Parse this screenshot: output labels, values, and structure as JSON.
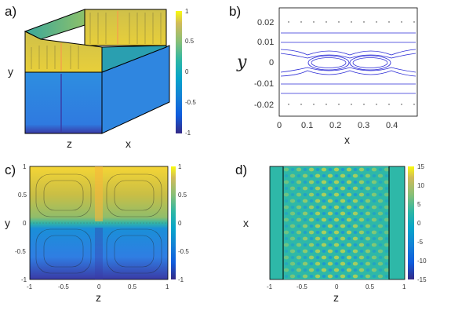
{
  "panels": {
    "a": {
      "label": "a)",
      "axis_labels": [
        "y",
        "z",
        "x"
      ],
      "colorbar_ticks": [
        "1",
        "0.5",
        "0",
        "-0.5",
        "-1"
      ]
    },
    "b": {
      "label": "b)",
      "ylabel": "y",
      "xlabel": "x",
      "x_ticks": [
        "0",
        "0.1",
        "0.2",
        "0.3",
        "0.4"
      ],
      "y_ticks": [
        "0.02",
        "0.01",
        "0",
        "-0.01",
        "-0.02"
      ]
    },
    "c": {
      "label": "c)",
      "ylabel": "y",
      "xlabel": "z",
      "x_ticks": [
        "-1",
        "-0.5",
        "0",
        "0.5",
        "1"
      ],
      "y_ticks": [
        "1",
        "0.5",
        "0",
        "-0.5",
        "-1"
      ],
      "colorbar_ticks": [
        "1",
        "0.5",
        "0",
        "-0.5",
        "-1"
      ]
    },
    "d": {
      "label": "d)",
      "ylabel": "x",
      "xlabel": "z",
      "x_ticks": [
        "-1",
        "-0.5",
        "0",
        "0.5",
        "1"
      ],
      "colorbar_ticks": [
        "15",
        "10",
        "5",
        "0",
        "-5",
        "-10",
        "-15"
      ]
    }
  },
  "colors": {
    "parula_high": "#f9e02c",
    "parula_mid": "#25b3a3",
    "parula_low": "#3c2d9a",
    "streamline": "#2b2bd6"
  }
}
